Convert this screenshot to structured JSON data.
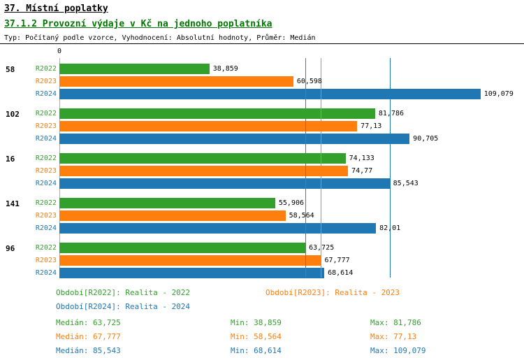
{
  "header": {
    "title": "37. Místní poplatky",
    "subtitle": "37.1.2 Provozní výdaje v Kč na jednoho poplatníka",
    "meta": "Typ: Počítaný podle vzorce, Vyhodnocení: Absolutní hodnoty, Průměr: Medián"
  },
  "colors": {
    "subtitle": "#007700",
    "r2022": "#33a02c",
    "r2023": "#ff7f0e",
    "r2024": "#1f77b4"
  },
  "chart_data": {
    "type": "bar",
    "orientation": "horizontal",
    "x_axis": {
      "zero_label": "0",
      "max": 118
    },
    "series": [
      {
        "name": "R2022",
        "color": "#33a02c"
      },
      {
        "name": "R2023",
        "color": "#ff7f0e"
      },
      {
        "name": "R2024",
        "color": "#1f77b4"
      }
    ],
    "groups": [
      {
        "label": "58",
        "values": [
          38.859,
          60.598,
          109.079
        ],
        "display": [
          "38,859",
          "60,598",
          "109,079"
        ]
      },
      {
        "label": "102",
        "values": [
          81.786,
          77.13,
          90.705
        ],
        "display": [
          "81,786",
          "77,13",
          "90,705"
        ]
      },
      {
        "label": "16",
        "values": [
          74.133,
          74.77,
          85.543
        ],
        "display": [
          "74,133",
          "74,77",
          "85,543"
        ]
      },
      {
        "label": "141",
        "values": [
          55.906,
          58.564,
          82.01
        ],
        "display": [
          "55,906",
          "58,564",
          "82,01"
        ]
      },
      {
        "label": "96",
        "values": [
          63.725,
          67.777,
          68.614
        ],
        "display": [
          "63,725",
          "67,777",
          "68,614"
        ]
      }
    ],
    "median_lines": [
      {
        "series": "R2022",
        "value": 63.725,
        "color": "#33a02c"
      },
      {
        "series": "R2023",
        "value": 67.777,
        "color": "#ff7f0e"
      },
      {
        "series": "R2024",
        "value": 85.543,
        "color": "#1f77b4"
      }
    ]
  },
  "legend": {
    "r2022": "Období[R2022]: Realita - 2022",
    "r2023": "Období[R2023]: Realita - 2023",
    "r2024": "Období[R2024]: Realita - 2024"
  },
  "stats": [
    {
      "median": "Medián: 63,725",
      "min": "Min: 38,859",
      "max": "Max: 81,786"
    },
    {
      "median": "Medián: 67,777",
      "min": "Min: 58,564",
      "max": "Max: 77,13"
    },
    {
      "median": "Medián: 85,543",
      "min": "Min: 68,614",
      "max": "Max: 109,079"
    }
  ]
}
